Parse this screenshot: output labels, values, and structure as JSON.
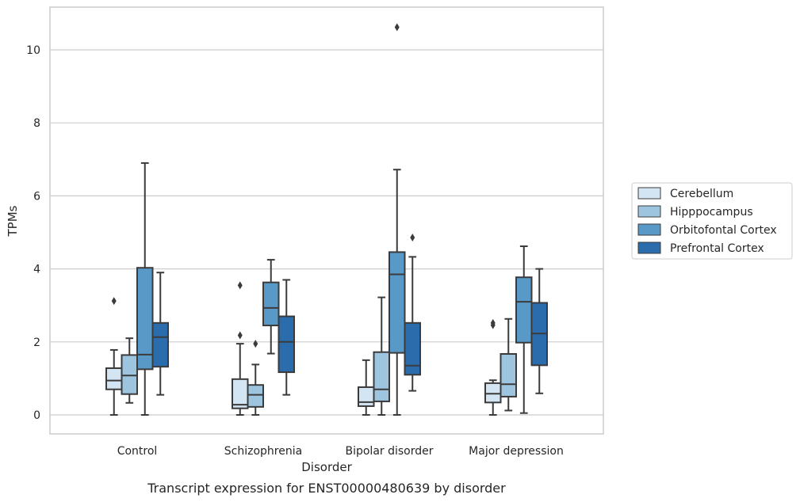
{
  "chart_data": {
    "type": "box",
    "xlabel": "Disorder",
    "ylabel": "TPMs",
    "caption": "Transcript expression for ENST00000480639 by disorder",
    "ylim": [
      -0.5,
      11.2
    ],
    "yticks": [
      0,
      2,
      4,
      6,
      8,
      10
    ],
    "grid": "horizontal",
    "legend_position": "right",
    "categories": [
      "Control",
      "Schizophrenia",
      "Bipolar disorder",
      "Major depression"
    ],
    "series": [
      {
        "name": "Cerebellum",
        "color": "#d3e4f3",
        "boxes": [
          {
            "whisker_low": 0.0,
            "q1": 0.7,
            "median": 0.94,
            "q3": 1.28,
            "whisker_high": 1.78,
            "outliers": [
              3.12
            ]
          },
          {
            "whisker_low": 0.0,
            "q1": 0.18,
            "median": 0.28,
            "q3": 0.98,
            "whisker_high": 1.95,
            "outliers": [
              2.18,
              3.55
            ]
          },
          {
            "whisker_low": 0.0,
            "q1": 0.24,
            "median": 0.35,
            "q3": 0.76,
            "whisker_high": 1.5,
            "outliers": []
          },
          {
            "whisker_low": 0.0,
            "q1": 0.34,
            "median": 0.58,
            "q3": 0.87,
            "whisker_high": 0.95,
            "outliers": [
              2.46,
              2.52
            ]
          }
        ]
      },
      {
        "name": "Hipppocampus",
        "color": "#9ec5df",
        "boxes": [
          {
            "whisker_low": 0.33,
            "q1": 0.57,
            "median": 1.08,
            "q3": 1.64,
            "whisker_high": 2.1,
            "outliers": []
          },
          {
            "whisker_low": 0.0,
            "q1": 0.22,
            "median": 0.55,
            "q3": 0.82,
            "whisker_high": 1.38,
            "outliers": [
              1.95
            ]
          },
          {
            "whisker_low": 0.0,
            "q1": 0.37,
            "median": 0.7,
            "q3": 1.72,
            "whisker_high": 3.22,
            "outliers": []
          },
          {
            "whisker_low": 0.12,
            "q1": 0.5,
            "median": 0.84,
            "q3": 1.67,
            "whisker_high": 2.63,
            "outliers": []
          }
        ]
      },
      {
        "name": "Orbitofontal Cortex",
        "color": "#5899c8",
        "boxes": [
          {
            "whisker_low": 0.0,
            "q1": 1.25,
            "median": 1.65,
            "q3": 4.03,
            "whisker_high": 6.9,
            "outliers": []
          },
          {
            "whisker_low": 1.68,
            "q1": 2.45,
            "median": 2.93,
            "q3": 3.63,
            "whisker_high": 4.25,
            "outliers": []
          },
          {
            "whisker_low": 0.0,
            "q1": 1.7,
            "median": 3.85,
            "q3": 4.46,
            "whisker_high": 6.72,
            "outliers": [
              10.62
            ]
          },
          {
            "whisker_low": 0.05,
            "q1": 1.98,
            "median": 3.1,
            "q3": 3.77,
            "whisker_high": 4.62,
            "outliers": []
          }
        ]
      },
      {
        "name": "Prefrontal Cortex",
        "color": "#2b6cad",
        "boxes": [
          {
            "whisker_low": 0.55,
            "q1": 1.32,
            "median": 2.13,
            "q3": 2.52,
            "whisker_high": 3.9,
            "outliers": []
          },
          {
            "whisker_low": 0.55,
            "q1": 1.17,
            "median": 2.0,
            "q3": 2.7,
            "whisker_high": 3.7,
            "outliers": []
          },
          {
            "whisker_low": 0.66,
            "q1": 1.1,
            "median": 1.35,
            "q3": 2.52,
            "whisker_high": 4.33,
            "outliers": [
              4.86
            ]
          },
          {
            "whisker_low": 0.59,
            "q1": 1.36,
            "median": 2.23,
            "q3": 3.07,
            "whisker_high": 4.0,
            "outliers": []
          }
        ]
      }
    ]
  }
}
